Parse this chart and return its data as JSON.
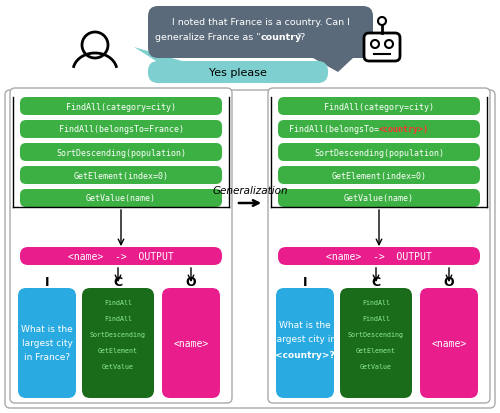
{
  "bg_color": "#ffffff",
  "dark_speech_bubble_color": "#5a6a7a",
  "light_speech_bubble_color": "#7ecfcf",
  "green_color": "#3cb043",
  "pink_color": "#e91e8c",
  "blue_color": "#29abe2",
  "dark_green_color": "#1a6b1a",
  "text_white": "#ffffff",
  "text_black": "#000000",
  "left_program": [
    "FindAll(category=city)",
    "FindAll(belongsTo=France)",
    "SortDescending(population)",
    "GetElement(index=0)",
    "GetValue(name)"
  ],
  "right_program_pre": [
    "FindAll(category=city)",
    "FindAll(belongsTo=",
    "SortDescending(population)",
    "GetElement(index=0)",
    "GetValue(name)"
  ],
  "right_program_highlight": [
    false,
    true,
    false,
    false,
    false
  ],
  "output_bar_text": "<name>  ->  OUTPUT",
  "C_items": [
    "FindAll",
    "FindAll",
    "SortDescending",
    "GetElement",
    "GetValue"
  ],
  "O_text": "<name>",
  "arrow_label": "Generalization"
}
